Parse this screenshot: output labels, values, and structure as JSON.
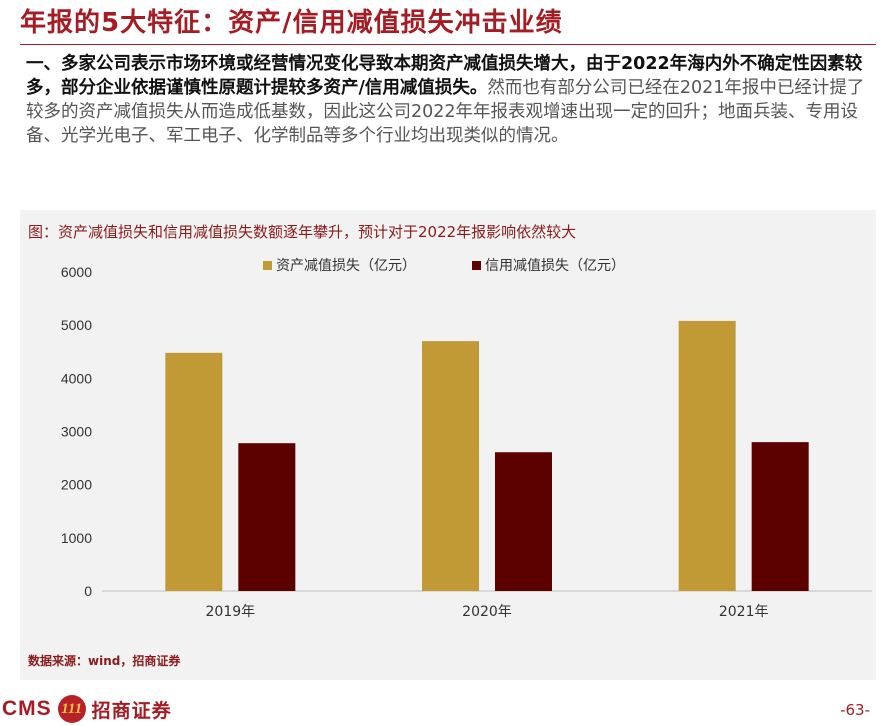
{
  "slide": {
    "title": "年报的5大特征：资产/信用减值损失冲击业绩",
    "paragraph": {
      "bold_text": "一、多家公司表示市场环境或经营情况变化导致本期资产减值损失增大，由于2022年海内外不确定性因素较多，部分企业依据谨慎性原题计提较多资产/信用减值损失。",
      "normal_text": "然而也有部分公司已经在2021年报中已经计提了较多的资产减值损失从而造成低基数，因此这公司2022年年报表观增速出现一定的回升；地面兵装、专用设备、光学光电子、军工电子、化学制品等多个行业均出现类似的情况。"
    },
    "chart_caption": "图：资产减值损失和信用减值损失数额逐年攀升，预计对于2022年报影响依然较大",
    "source": "数据来源：wind，招商证券",
    "footer": {
      "logo_text": "CMS",
      "logo_emblem": "111",
      "company": "招商证券",
      "page_number": "-63-"
    }
  },
  "chart_data": {
    "type": "bar",
    "categories": [
      "2019年",
      "2020年",
      "2021年"
    ],
    "series": [
      {
        "name": "资产减值损失（亿元）",
        "color": "#c19a36",
        "values": [
          4480,
          4700,
          5080
        ]
      },
      {
        "name": "信用减值损失（亿元）",
        "color": "#5c0000",
        "values": [
          2780,
          2610,
          2800
        ]
      }
    ],
    "ylim": [
      0,
      6000
    ],
    "yticks": [
      0,
      1000,
      2000,
      3000,
      4000,
      5000,
      6000
    ],
    "grid": false,
    "legend_position": "top-center"
  }
}
